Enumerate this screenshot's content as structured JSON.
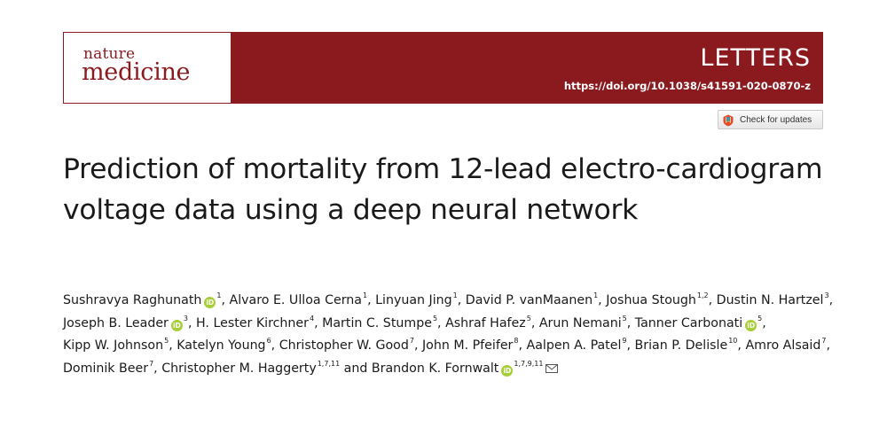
{
  "journal": {
    "logo_line1": "nature",
    "logo_line2": "medicine",
    "article_type": "LETTERS",
    "doi": "https://doi.org/10.1038/s41591-020-0870-z",
    "brand_color": "#8b1a1f"
  },
  "check_updates": {
    "label": "Check for updates",
    "icon": "crossmark-icon"
  },
  "title": "Prediction of mortality from 12-lead electro-cardiogram voltage data using a deep neural network",
  "orcid_icon": "iD",
  "orcid_color": "#a6ce39",
  "authors": [
    {
      "name": "Sushravya Raghunath",
      "orcid": true,
      "aff": "1",
      "sep": ", "
    },
    {
      "name": "Alvaro E. Ulloa Cerna",
      "orcid": false,
      "aff": "1",
      "sep": ", "
    },
    {
      "name": "Linyuan Jing",
      "orcid": false,
      "aff": "1",
      "sep": ", "
    },
    {
      "name": "David P. vanMaanen",
      "orcid": false,
      "aff": "1",
      "sep": ", "
    },
    {
      "name": "Joshua Stough",
      "orcid": false,
      "aff": "1,2",
      "sep": ", "
    },
    {
      "name": "Dustin N. Hartzel",
      "orcid": false,
      "aff": "3",
      "sep": ", "
    },
    {
      "name": "Joseph B. Leader",
      "orcid": true,
      "aff": "3",
      "sep": ", "
    },
    {
      "name": "H. Lester Kirchner",
      "orcid": false,
      "aff": "4",
      "sep": ", "
    },
    {
      "name": "Martin C. Stumpe",
      "orcid": false,
      "aff": "5",
      "sep": ", "
    },
    {
      "name": "Ashraf Hafez",
      "orcid": false,
      "aff": "5",
      "sep": ", "
    },
    {
      "name": "Arun Nemani",
      "orcid": false,
      "aff": "5",
      "sep": ", "
    },
    {
      "name": "Tanner Carbonati",
      "orcid": true,
      "aff": "5",
      "sep": ", "
    },
    {
      "name": "Kipp W. Johnson",
      "orcid": false,
      "aff": "5",
      "sep": ", "
    },
    {
      "name": "Katelyn Young",
      "orcid": false,
      "aff": "6",
      "sep": ", "
    },
    {
      "name": "Christopher W. Good",
      "orcid": false,
      "aff": "7",
      "sep": ", "
    },
    {
      "name": "John M. Pfeifer",
      "orcid": false,
      "aff": "8",
      "sep": ", "
    },
    {
      "name": "Aalpen A. Patel",
      "orcid": false,
      "aff": "9",
      "sep": ", "
    },
    {
      "name": "Brian P. Delisle",
      "orcid": false,
      "aff": "10",
      "sep": ", "
    },
    {
      "name": "Amro Alsaid",
      "orcid": false,
      "aff": "7",
      "sep": ", "
    },
    {
      "name": "Dominik Beer",
      "orcid": false,
      "aff": "7",
      "sep": ", "
    },
    {
      "name": "Christopher M. Haggerty",
      "orcid": false,
      "aff": "1,7,11",
      "sep": " and "
    },
    {
      "name": "Brandon K. Fornwalt",
      "orcid": true,
      "aff": "1,7,9,11",
      "sep": "",
      "corresponding": true
    }
  ],
  "correspondence_icon": "envelope-icon"
}
